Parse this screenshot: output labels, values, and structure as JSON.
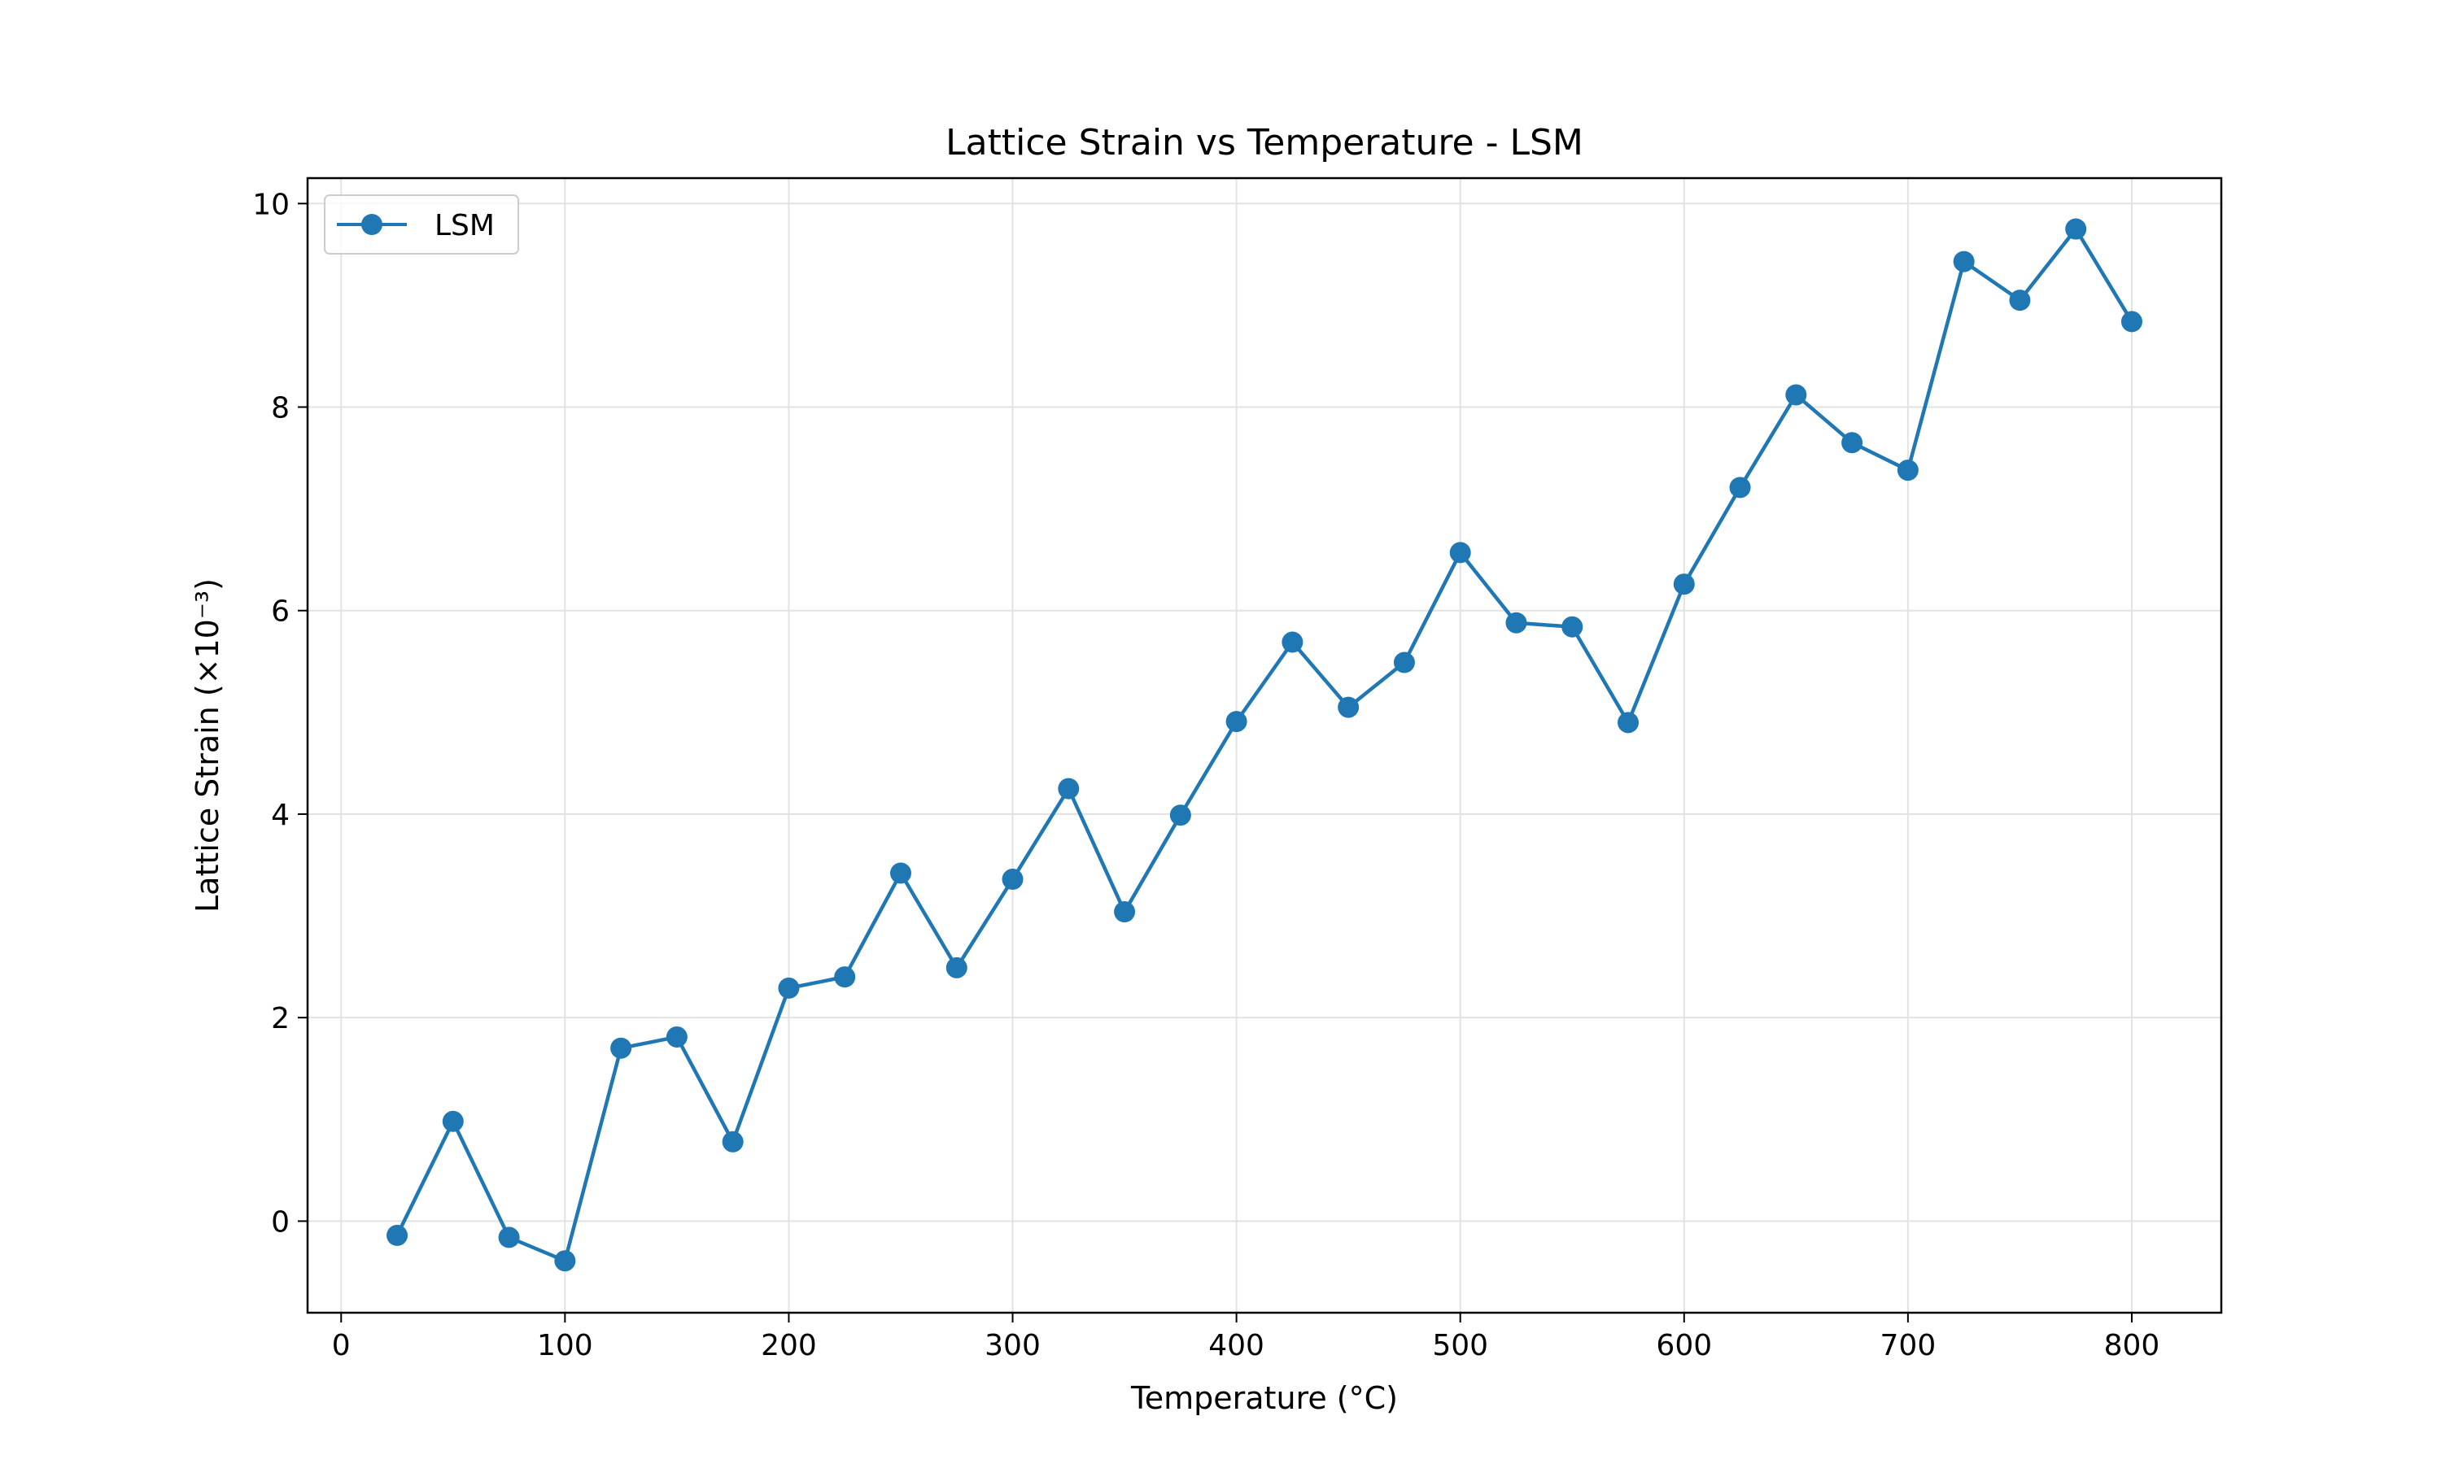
{
  "chart_data": {
    "type": "line",
    "title": "Lattice Strain vs Temperature - LSM",
    "xlabel": "Temperature (°C)",
    "ylabel": "Lattice Strain (×10⁻³)",
    "xlim": [
      -15,
      840
    ],
    "ylim": [
      -0.9,
      10.25
    ],
    "xticks": [
      0,
      100,
      200,
      300,
      400,
      500,
      600,
      700,
      800
    ],
    "xtick_labels": [
      "0",
      "100",
      "200",
      "300",
      "400",
      "500",
      "600",
      "700",
      "800"
    ],
    "yticks": [
      0,
      2,
      4,
      6,
      8,
      10
    ],
    "ytick_labels": [
      "0",
      "2",
      "4",
      "6",
      "8",
      "10"
    ],
    "grid": true,
    "legend_position": "top-left",
    "series": [
      {
        "name": "LSM",
        "color": "#1f77b4",
        "marker": "circle",
        "x": [
          25,
          50,
          75,
          100,
          125,
          150,
          175,
          200,
          225,
          250,
          275,
          300,
          325,
          350,
          375,
          400,
          425,
          450,
          475,
          500,
          525,
          550,
          575,
          600,
          625,
          650,
          675,
          700,
          725,
          750,
          775,
          800
        ],
        "y": [
          -0.14,
          0.98,
          -0.16,
          -0.39,
          1.7,
          1.81,
          0.78,
          2.29,
          2.4,
          3.42,
          2.49,
          3.36,
          4.25,
          3.04,
          3.99,
          4.91,
          5.69,
          5.05,
          5.49,
          6.57,
          5.88,
          5.84,
          4.9,
          6.26,
          7.21,
          8.12,
          7.65,
          7.38,
          9.43,
          9.05,
          9.75,
          8.84
        ]
      }
    ]
  }
}
